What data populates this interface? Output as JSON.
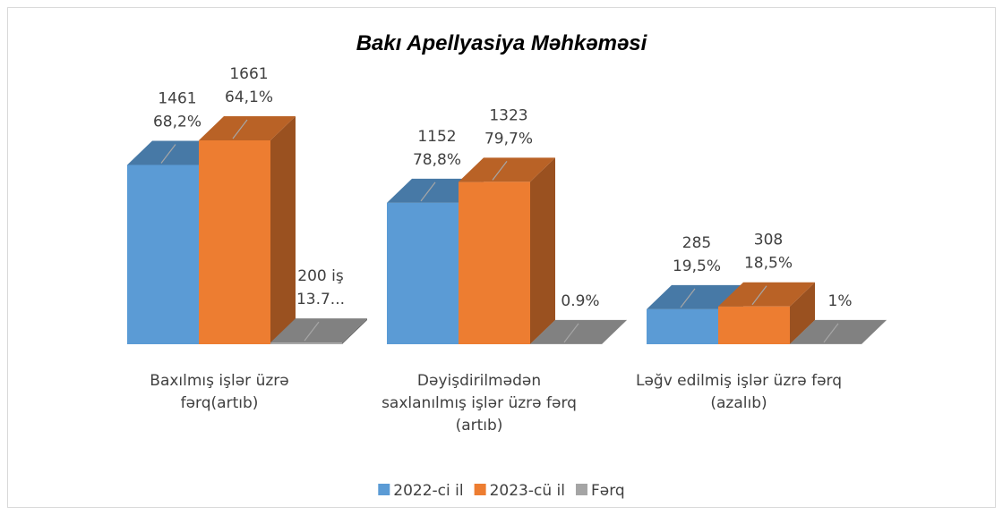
{
  "chart_data": {
    "type": "bar3d",
    "title": "Bakı Apellyasiya Məhkəməsi",
    "categories": [
      [
        "Baxılmış işlər üzrə",
        "fərq(artıb)"
      ],
      [
        "Dəyişdirilmədən",
        "saxlanılmış işlər üzrə fərq",
        "(artıb)"
      ],
      [
        "Ləğv edilmiş işlər üzrə fərq",
        "(azalıb)"
      ]
    ],
    "series": [
      {
        "name": "2022-ci il",
        "color": "#5b9bd5",
        "values": [
          1461,
          1152,
          285
        ],
        "value_labels": [
          [
            "1461",
            "68,2%"
          ],
          [
            "1152",
            "78,8%"
          ],
          [
            "285",
            "19,5%"
          ]
        ]
      },
      {
        "name": "2023-cü il",
        "color": "#ed7d31",
        "values": [
          1661,
          1323,
          308
        ],
        "value_labels": [
          [
            "1661",
            "64,1%"
          ],
          [
            "1323",
            "79,7%"
          ],
          [
            "308",
            "18,5%"
          ]
        ]
      },
      {
        "name": "Fərq",
        "color": "#a5a5a5",
        "values": [
          13.7,
          0.9,
          1
        ],
        "value_labels": [
          [
            "200 iş",
            "13.7..."
          ],
          [
            "0.9%"
          ],
          [
            "1%"
          ]
        ]
      }
    ],
    "legend": "bottom"
  }
}
